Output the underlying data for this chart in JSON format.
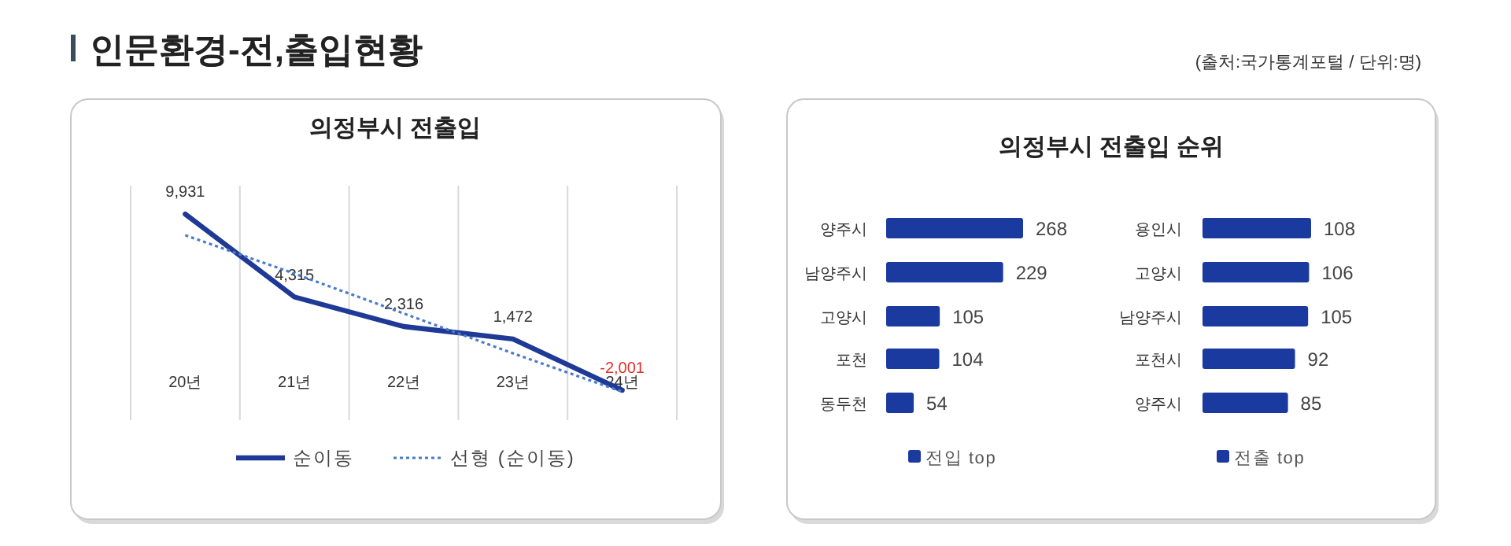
{
  "chart_data": [
    {
      "type": "other",
      "title": "인문환경-전,출입현황",
      "annotations": [
        "(출처:국가통계포털 / 단위:명)"
      ]
    },
    {
      "type": "line",
      "title": "의정부시 전출입",
      "categories": [
        "20년",
        "21년",
        "22년",
        "23년",
        "24년"
      ],
      "series": [
        {
          "name": "순이동",
          "color": "#1f3a96",
          "line_style": "solid",
          "values": [
            9931,
            4315,
            2316,
            1472,
            -2001
          ],
          "value_labels": [
            "9,931",
            "4,315",
            "2,316",
            "1,472",
            "-2,001"
          ]
        },
        {
          "name": "선형 (순이동)",
          "color": "#4a7cc9",
          "line_style": "dotted",
          "values": [
            8500,
            5900,
            3200,
            500,
            -2100
          ]
        }
      ],
      "grid": "x",
      "legend": "bottom",
      "marker": "none"
    },
    {
      "type": "bar",
      "orientation": "horizontal",
      "title": "의정부시 전출입 순위",
      "categories": [
        "양주시",
        "남양주시",
        "고양시",
        "포천",
        "동두천"
      ],
      "series": [
        {
          "name": "전입 top",
          "color": "#1a3aa0",
          "values": [
            268,
            229,
            105,
            104,
            54
          ]
        }
      ],
      "data_labels": true,
      "legend": "bottom"
    },
    {
      "type": "bar",
      "orientation": "horizontal",
      "categories": [
        "용인시",
        "고양시",
        "남양주시",
        "포천시",
        "양주시"
      ],
      "series": [
        {
          "name": "전출 top",
          "color": "#1a3aa0",
          "values": [
            108,
            106,
            105,
            92,
            85
          ]
        }
      ],
      "data_labels": true,
      "legend": "bottom"
    }
  ]
}
